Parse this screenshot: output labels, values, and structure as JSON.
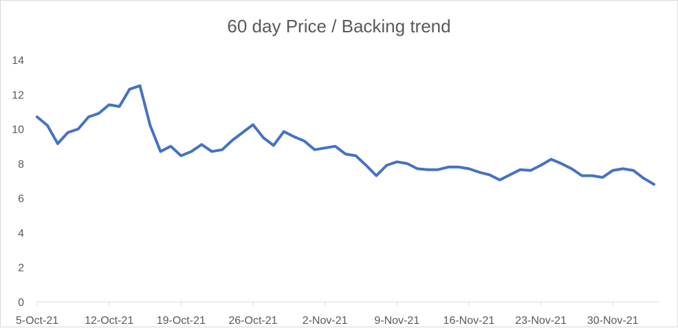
{
  "chart_data": {
    "type": "line",
    "title": "60 day Price / Backing trend",
    "xlabel": "",
    "ylabel": "",
    "ylim": [
      0,
      14
    ],
    "yticks": [
      0,
      2,
      4,
      6,
      8,
      10,
      12,
      14
    ],
    "xticks": [
      "5-Oct-21",
      "12-Oct-21",
      "19-Oct-21",
      "26-Oct-21",
      "2-Nov-21",
      "9-Nov-21",
      "16-Nov-21",
      "23-Nov-21",
      "30-Nov-21"
    ],
    "grid": false,
    "legend": "none",
    "series": [
      {
        "color": "#4472c4",
        "points": [
          [
            "5-Oct-21",
            10.7
          ],
          [
            "6-Oct-21",
            10.2
          ],
          [
            "7-Oct-21",
            9.15
          ],
          [
            "8-Oct-21",
            9.8
          ],
          [
            "9-Oct-21",
            10.0
          ],
          [
            "10-Oct-21",
            10.7
          ],
          [
            "11-Oct-21",
            10.9
          ],
          [
            "12-Oct-21",
            11.4
          ],
          [
            "13-Oct-21",
            11.3
          ],
          [
            "14-Oct-21",
            12.3
          ],
          [
            "15-Oct-21",
            12.5
          ],
          [
            "16-Oct-21",
            10.2
          ],
          [
            "17-Oct-21",
            8.7
          ],
          [
            "18-Oct-21",
            9.0
          ],
          [
            "19-Oct-21",
            8.45
          ],
          [
            "20-Oct-21",
            8.7
          ],
          [
            "21-Oct-21",
            9.1
          ],
          [
            "22-Oct-21",
            8.7
          ],
          [
            "23-Oct-21",
            8.8
          ],
          [
            "24-Oct-21",
            9.35
          ],
          [
            "25-Oct-21",
            9.8
          ],
          [
            "26-Oct-21",
            10.25
          ],
          [
            "27-Oct-21",
            9.5
          ],
          [
            "28-Oct-21",
            9.05
          ],
          [
            "29-Oct-21",
            9.85
          ],
          [
            "30-Oct-21",
            9.55
          ],
          [
            "31-Oct-21",
            9.3
          ],
          [
            "1-Nov-21",
            8.8
          ],
          [
            "2-Nov-21",
            8.9
          ],
          [
            "3-Nov-21",
            9.0
          ],
          [
            "4-Nov-21",
            8.55
          ],
          [
            "5-Nov-21",
            8.45
          ],
          [
            "6-Nov-21",
            7.9
          ],
          [
            "7-Nov-21",
            7.3
          ],
          [
            "8-Nov-21",
            7.9
          ],
          [
            "9-Nov-21",
            8.1
          ],
          [
            "10-Nov-21",
            8.0
          ],
          [
            "11-Nov-21",
            7.7
          ],
          [
            "12-Nov-21",
            7.65
          ],
          [
            "13-Nov-21",
            7.65
          ],
          [
            "14-Nov-21",
            7.8
          ],
          [
            "15-Nov-21",
            7.8
          ],
          [
            "16-Nov-21",
            7.7
          ],
          [
            "17-Nov-21",
            7.5
          ],
          [
            "18-Nov-21",
            7.35
          ],
          [
            "19-Nov-21",
            7.05
          ],
          [
            "20-Nov-21",
            7.35
          ],
          [
            "21-Nov-21",
            7.65
          ],
          [
            "22-Nov-21",
            7.6
          ],
          [
            "23-Nov-21",
            7.9
          ],
          [
            "24-Nov-21",
            8.25
          ],
          [
            "25-Nov-21",
            8.0
          ],
          [
            "26-Nov-21",
            7.7
          ],
          [
            "27-Nov-21",
            7.3
          ],
          [
            "28-Nov-21",
            7.3
          ],
          [
            "29-Nov-21",
            7.2
          ],
          [
            "30-Nov-21",
            7.6
          ],
          [
            "1-Dec-21",
            7.7
          ],
          [
            "2-Dec-21",
            7.6
          ],
          [
            "3-Dec-21",
            7.15
          ],
          [
            "4-Dec-21",
            6.8
          ]
        ]
      }
    ]
  }
}
